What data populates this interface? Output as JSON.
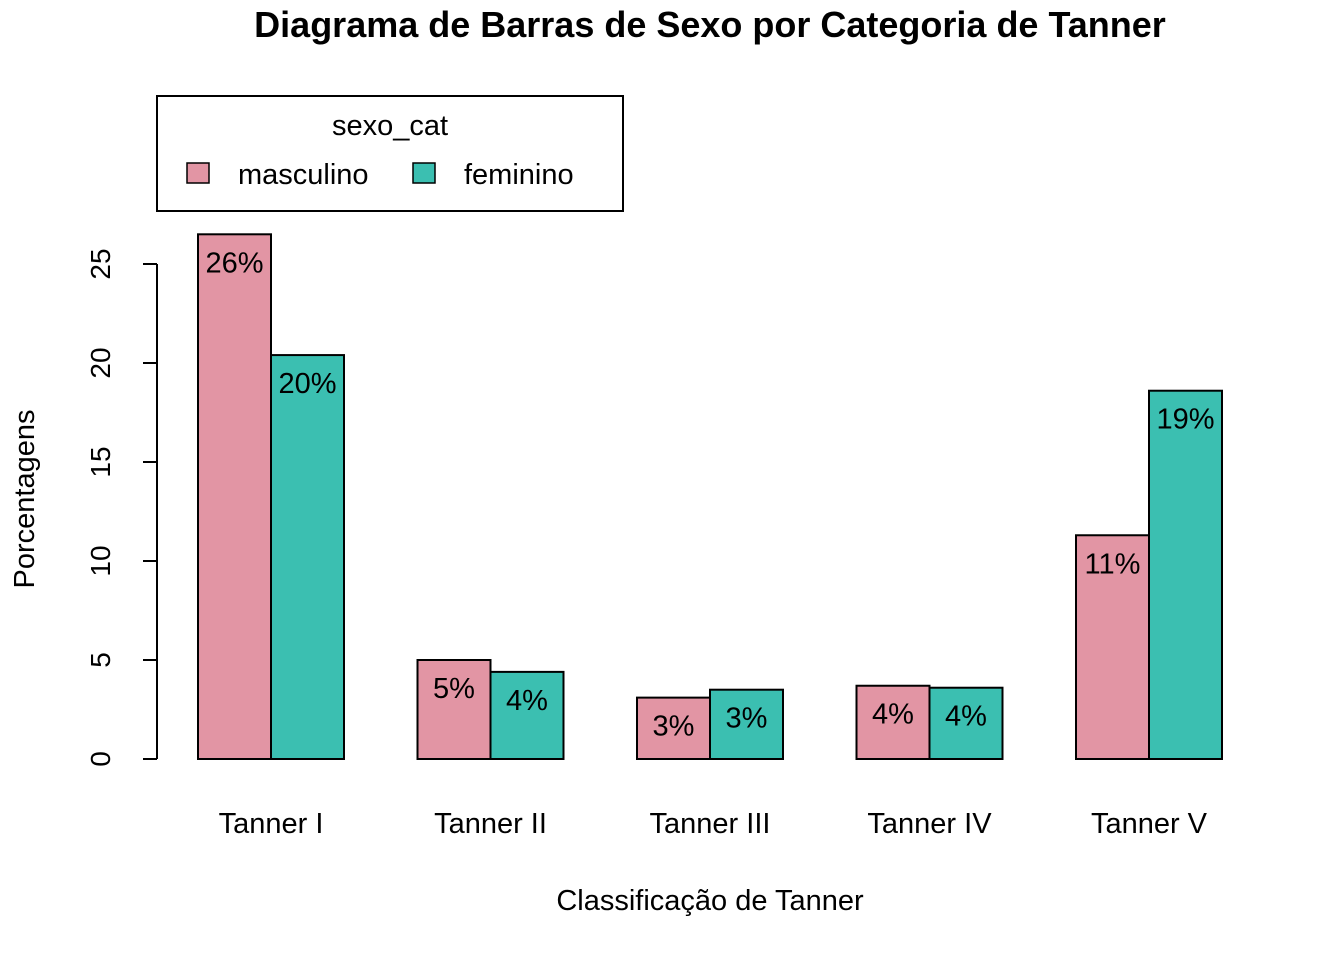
{
  "chart_data": {
    "type": "bar",
    "title": "Diagrama de Barras de Sexo por Categoria de Tanner",
    "xlabel": "Classificação de Tanner",
    "ylabel": "Porcentagens",
    "categories": [
      "Tanner I",
      "Tanner II",
      "Tanner III",
      "Tanner IV",
      "Tanner V"
    ],
    "series": [
      {
        "name": "masculino",
        "color": "#E295A4",
        "values": [
          26.5,
          5.0,
          3.1,
          3.7,
          11.3
        ],
        "labels": [
          "26%",
          "5%",
          "3%",
          "4%",
          "11%"
        ]
      },
      {
        "name": "feminino",
        "color": "#3BBFB1",
        "values": [
          20.4,
          4.4,
          3.5,
          3.6,
          18.6
        ],
        "labels": [
          "20%",
          "4%",
          "3%",
          "4%",
          "19%"
        ]
      }
    ],
    "yticks": [
      0,
      5,
      10,
      15,
      20,
      25
    ],
    "ylim": [
      0,
      26.5
    ],
    "legend": {
      "title": "sexo_cat",
      "position": "top-left"
    },
    "grid": false
  }
}
